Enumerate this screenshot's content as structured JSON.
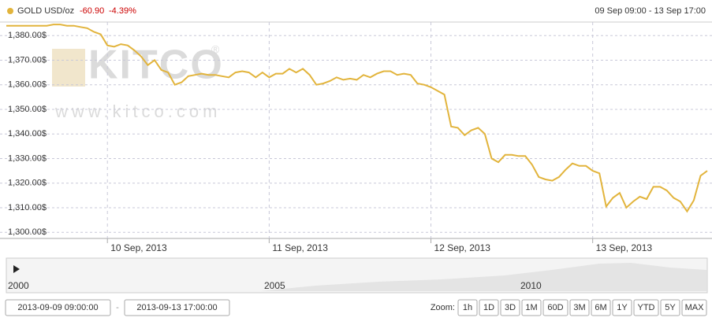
{
  "chart_data": {
    "type": "line",
    "categories": [
      null,
      null,
      null,
      null,
      null,
      null,
      null,
      null,
      null,
      null,
      null,
      null,
      null,
      null,
      null,
      "10 Sep, 2013",
      null,
      null,
      null,
      null,
      null,
      null,
      null,
      null,
      null,
      null,
      null,
      null,
      null,
      null,
      null,
      null,
      null,
      null,
      null,
      null,
      null,
      null,
      null,
      "11 Sep, 2013",
      null,
      null,
      null,
      null,
      null,
      null,
      null,
      null,
      null,
      null,
      null,
      null,
      null,
      null,
      null,
      null,
      null,
      null,
      null,
      null,
      null,
      null,
      null,
      "12 Sep, 2013",
      null,
      null,
      null,
      null,
      null,
      null,
      null,
      null,
      null,
      null,
      null,
      null,
      null,
      null,
      null,
      null,
      null,
      null,
      null,
      null,
      null,
      null,
      null,
      "13 Sep, 2013",
      null,
      null,
      null,
      null,
      null,
      null,
      null,
      null,
      null,
      null,
      null,
      null,
      null,
      null,
      null,
      null,
      null
    ],
    "series": [
      {
        "name": "GOLD USD/oz",
        "color": "#e2b43c",
        "values": [
          1384,
          1384,
          1384,
          1384,
          1384,
          1384,
          1384,
          1384.5,
          1384.5,
          1384,
          1384,
          1383.5,
          1383,
          1381.5,
          1380.5,
          1376,
          1375.5,
          1376.5,
          1376,
          1374,
          1371.5,
          1368,
          1370,
          1366,
          1365,
          1360,
          1361,
          1363.5,
          1364,
          1364.5,
          1364,
          1364,
          1363.5,
          1363,
          1365,
          1365.5,
          1365,
          1363,
          1365,
          1363,
          1364.5,
          1364.5,
          1366.5,
          1365,
          1366.5,
          1364,
          1360,
          1360.5,
          1361.5,
          1363,
          1362,
          1362.5,
          1362,
          1364,
          1363,
          1364.5,
          1365.5,
          1365.5,
          1364,
          1364.5,
          1364,
          1360.5,
          1360,
          1359,
          1357.5,
          1356,
          1343,
          1342.5,
          1339.5,
          1341.5,
          1342.5,
          1340,
          1330,
          1328.5,
          1331.5,
          1331.5,
          1331,
          1331,
          1327.5,
          1322.5,
          1321.5,
          1321,
          1322.5,
          1325.5,
          1328,
          1327,
          1327,
          1325,
          1324,
          1310.5,
          1314,
          1316,
          1310,
          1312.5,
          1314.5,
          1313.5,
          1318.5,
          1318.5,
          1317,
          1314,
          1312.5,
          1308.5,
          1313,
          1323,
          1325
        ]
      }
    ],
    "change": "-60.90",
    "change_pct": "-4.39%",
    "range": "09 Sep 09:00 - 13 Sep 17:00",
    "ylim": [
      1297.5,
      1385.5
    ],
    "yticks": [
      {
        "value": 1300,
        "label": "1,300.00$"
      },
      {
        "value": 1310,
        "label": "1,310.00$"
      },
      {
        "value": 1320,
        "label": "1,320.00$"
      },
      {
        "value": 1330,
        "label": "1,330.00$"
      },
      {
        "value": 1340,
        "label": "1,340.00$"
      },
      {
        "value": 1350,
        "label": "1,350.00$"
      },
      {
        "value": 1360,
        "label": "1,360.00$"
      },
      {
        "value": 1370,
        "label": "1,370.00$"
      },
      {
        "value": 1380,
        "label": "1,380.00$"
      }
    ],
    "grid": true
  },
  "watermark": {
    "logo": "KITCO",
    "mark": "®",
    "url": "www.kitco.com"
  },
  "navigator": {
    "labels": [
      "2000",
      "2005",
      "2010"
    ]
  },
  "range_inputs": {
    "from": "2013-09-09 09:00:00",
    "separator": "-",
    "to": "2013-09-13 17:00:00"
  },
  "zoom": {
    "label": "Zoom:",
    "buttons": [
      "1h",
      "1D",
      "3D",
      "1M",
      "60D",
      "3M",
      "6M",
      "1Y",
      "YTD",
      "5Y",
      "MAX"
    ]
  }
}
